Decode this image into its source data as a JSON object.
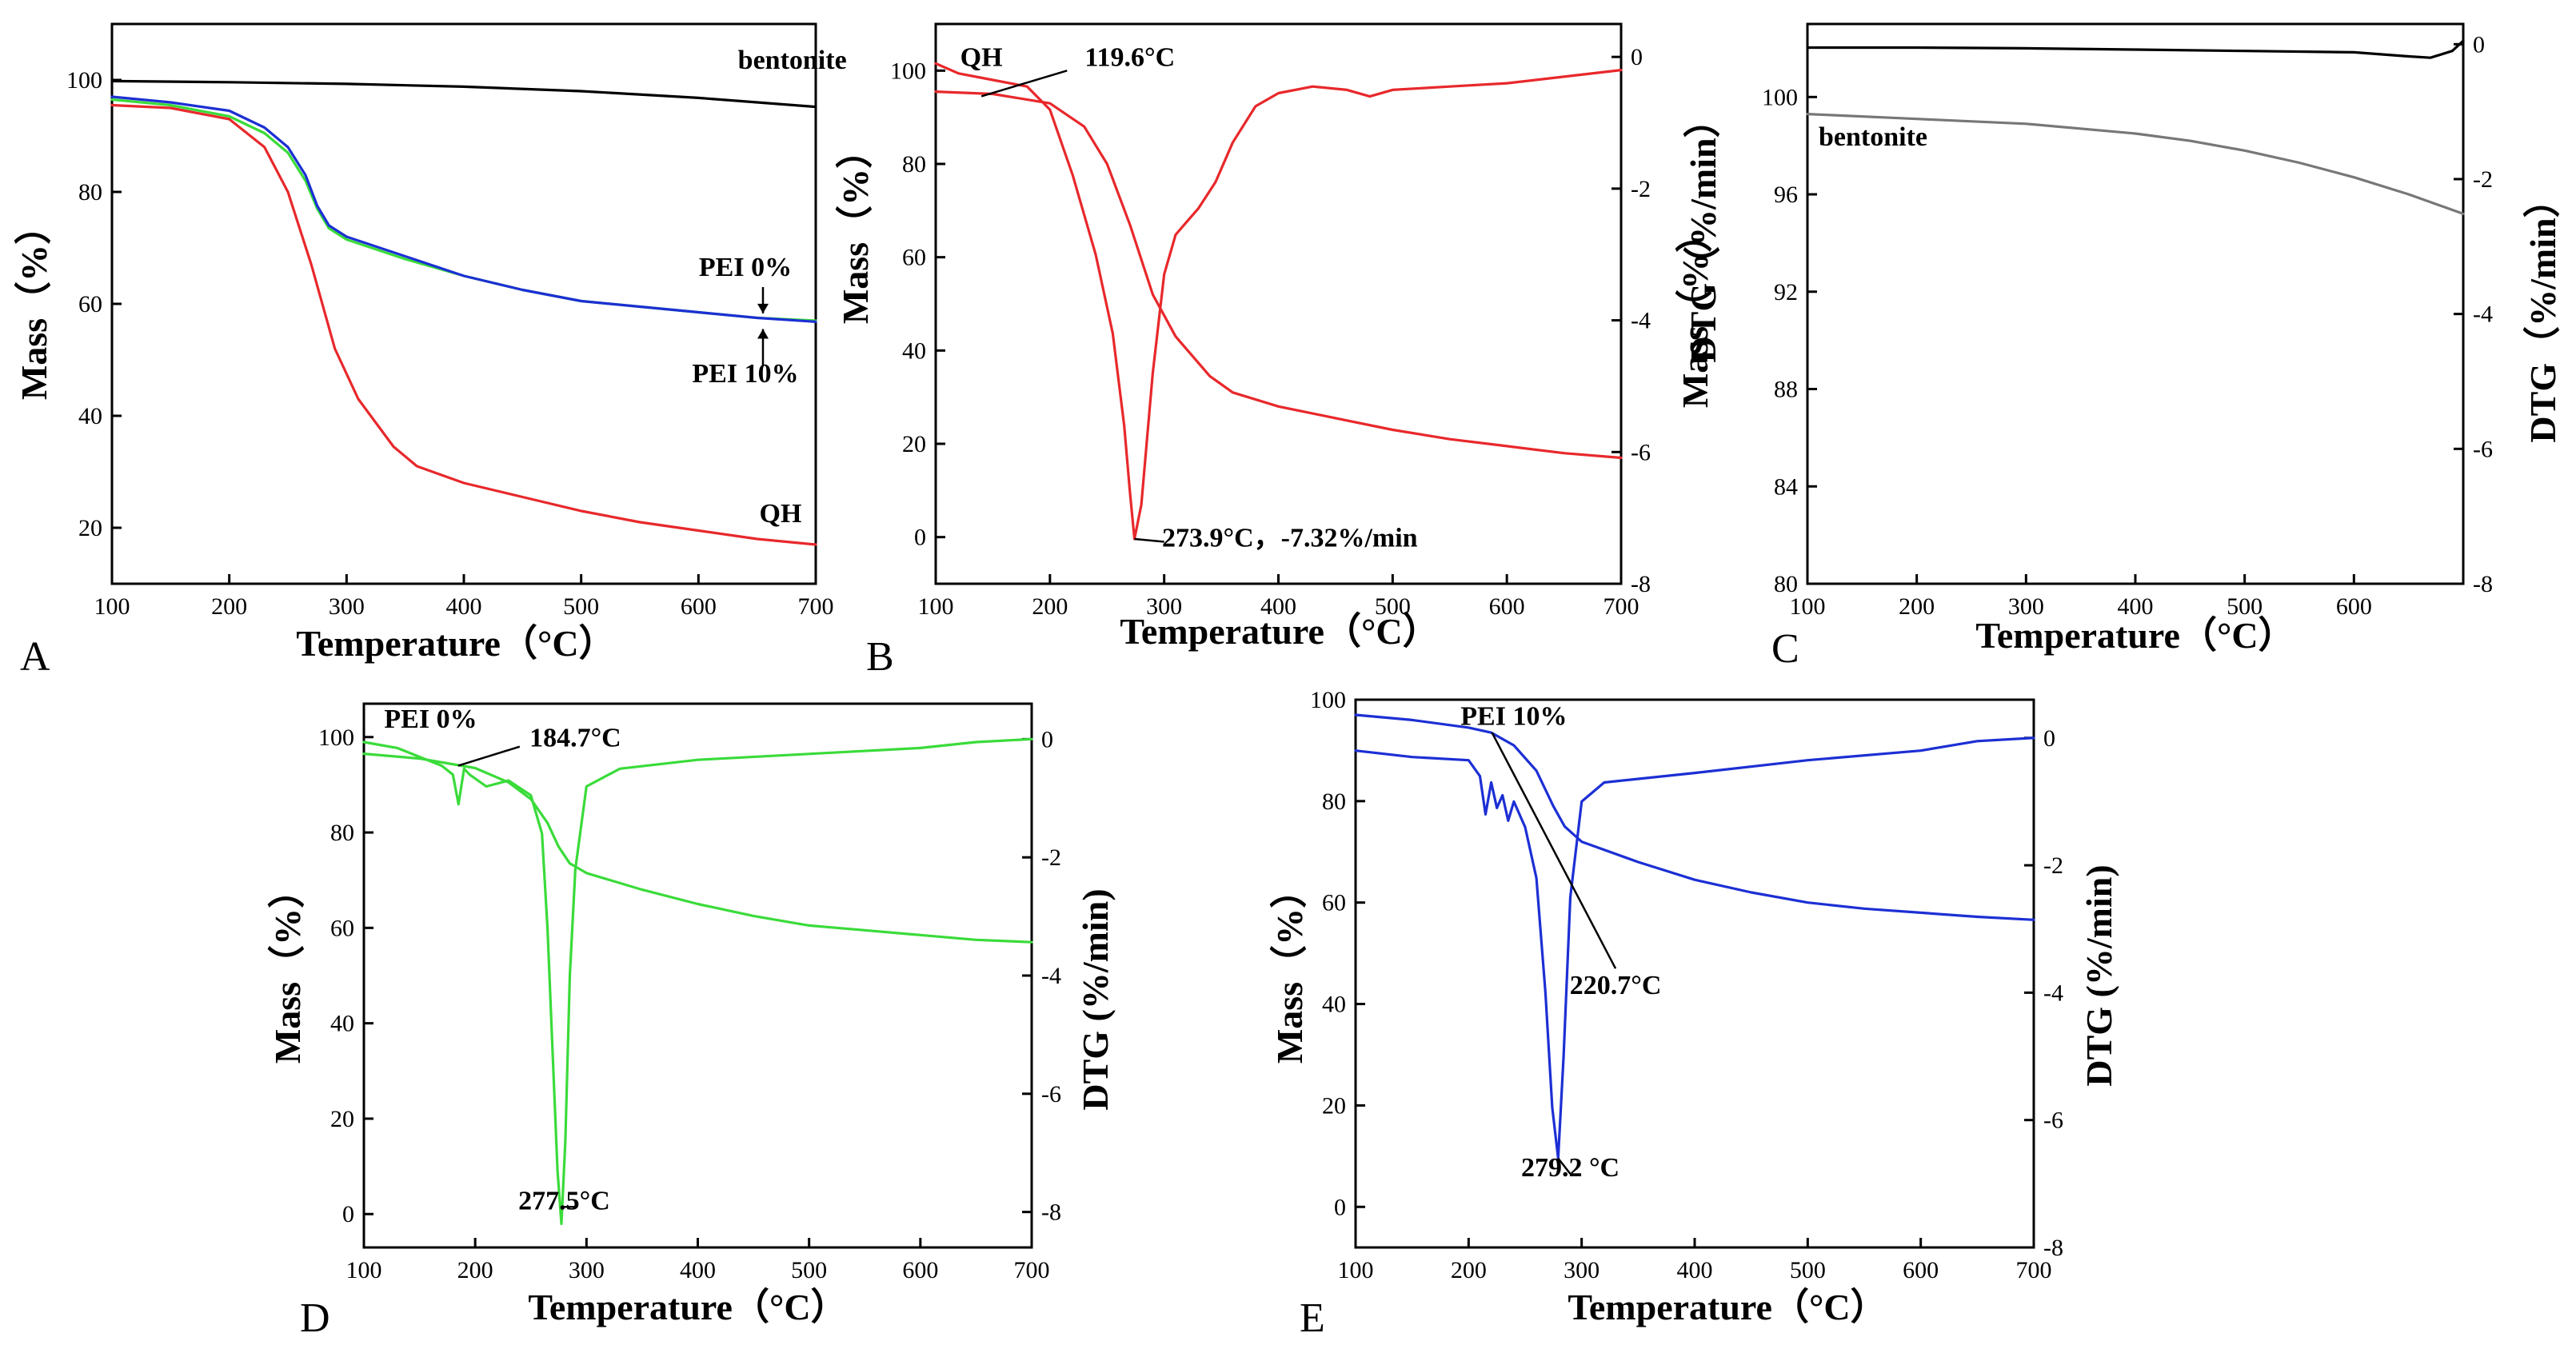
{
  "chart_data": [
    {
      "id": "A",
      "type": "line",
      "panel_label": "A",
      "xlabel": "Temperature（°C）",
      "ylabel": "Mass（%）",
      "xlim": [
        100,
        700
      ],
      "ylim": [
        10,
        110
      ],
      "xticks": [
        100,
        200,
        300,
        400,
        500,
        600,
        700
      ],
      "yticks": [
        20,
        40,
        60,
        80,
        100
      ],
      "series": [
        {
          "name": "bentonite",
          "color": "#000000",
          "axis": "left",
          "x": [
            100,
            200,
            300,
            400,
            500,
            600,
            650,
            700
          ],
          "y": [
            99.8,
            99.6,
            99.3,
            98.8,
            98.0,
            96.8,
            96.0,
            95.2
          ]
        },
        {
          "name": "QH",
          "color": "#e8282b",
          "axis": "left",
          "x": [
            100,
            150,
            200,
            230,
            250,
            270,
            290,
            310,
            340,
            360,
            400,
            450,
            500,
            550,
            600,
            650,
            700
          ],
          "y": [
            95.5,
            95.0,
            93.0,
            88.0,
            80.0,
            67.0,
            52.0,
            43.0,
            34.5,
            31.0,
            28.0,
            25.5,
            23.0,
            21.0,
            19.5,
            18.0,
            17.0
          ]
        },
        {
          "name": "PEI 0%",
          "color": "#3adb3a",
          "axis": "left",
          "x": [
            100,
            150,
            200,
            230,
            250,
            265,
            275,
            285,
            300,
            350,
            400,
            450,
            500,
            550,
            600,
            650,
            700
          ],
          "y": [
            96.5,
            95.5,
            93.5,
            90.5,
            87.0,
            82.0,
            77.0,
            73.5,
            71.5,
            68.0,
            65.0,
            62.5,
            60.5,
            59.5,
            58.5,
            57.5,
            57.0
          ]
        },
        {
          "name": "PEI 10%",
          "color": "#1c2fd4",
          "axis": "left",
          "x": [
            100,
            150,
            200,
            230,
            250,
            265,
            275,
            285,
            300,
            350,
            400,
            450,
            500,
            550,
            600,
            650,
            700
          ],
          "y": [
            97.0,
            96.0,
            94.5,
            91.5,
            88.0,
            83.0,
            77.5,
            74.0,
            72.0,
            68.5,
            65.0,
            62.5,
            60.5,
            59.5,
            58.5,
            57.5,
            56.8
          ]
        }
      ],
      "annotations": [
        {
          "text": "bentonite",
          "x": 680,
          "y": 102
        },
        {
          "text": "PEI 0%",
          "x": 640,
          "y": 65
        },
        {
          "text": "PEI 10%",
          "x": 640,
          "y": 46
        },
        {
          "text": "QH",
          "x": 670,
          "y": 21
        }
      ]
    },
    {
      "id": "B",
      "type": "line",
      "panel_label": "B",
      "xlabel": "Temperature（°C）",
      "ylabel": "Mass（%）",
      "y2label": "DTG（%/min）",
      "xlim": [
        100,
        700
      ],
      "ylim": [
        -10,
        110
      ],
      "y2lim": [
        -8,
        0.5
      ],
      "xticks": [
        100,
        200,
        300,
        400,
        500,
        600,
        700
      ],
      "yticks": [
        0,
        20,
        40,
        60,
        80,
        100
      ],
      "y2ticks": [
        0,
        -2,
        -4,
        -6,
        -8
      ],
      "series": [
        {
          "name": "QH mass",
          "color": "#e8282b",
          "axis": "left",
          "x": [
            100,
            150,
            200,
            230,
            250,
            270,
            290,
            310,
            340,
            360,
            400,
            450,
            500,
            550,
            600,
            650,
            700
          ],
          "y": [
            95.5,
            95.0,
            93.0,
            88.0,
            80.0,
            67.0,
            52.0,
            43.0,
            34.5,
            31.0,
            28.0,
            25.5,
            23.0,
            21.0,
            19.5,
            18.0,
            17.0
          ]
        },
        {
          "name": "QH DTG",
          "color": "#e8282b",
          "axis": "right",
          "x": [
            100,
            120,
            150,
            180,
            200,
            220,
            240,
            255,
            265,
            270,
            274,
            280,
            290,
            300,
            310,
            320,
            330,
            345,
            360,
            380,
            400,
            430,
            460,
            480,
            500,
            550,
            600,
            650,
            700
          ],
          "y": [
            -0.1,
            -0.25,
            -0.35,
            -0.45,
            -0.8,
            -1.8,
            -3.0,
            -4.2,
            -5.6,
            -6.6,
            -7.32,
            -6.8,
            -4.8,
            -3.3,
            -2.7,
            -2.5,
            -2.3,
            -1.9,
            -1.3,
            -0.75,
            -0.55,
            -0.45,
            -0.5,
            -0.6,
            -0.5,
            -0.45,
            -0.4,
            -0.3,
            -0.2
          ]
        }
      ],
      "annotations": [
        {
          "text": "QH",
          "x": 140,
          "y": 101
        },
        {
          "text": "119.6°C",
          "x": 270,
          "y": 101
        },
        {
          "text": "273.9°C，-7.32%/min",
          "x": 410,
          "y": -2
        }
      ]
    },
    {
      "id": "C",
      "type": "line",
      "panel_label": "C",
      "xlabel": "Temperature（°C）",
      "ylabel": "Mass（%）",
      "y2label": "DTG（%/min）",
      "xlim": [
        100,
        700
      ],
      "ylim": [
        80,
        103
      ],
      "y2lim": [
        -8,
        0.3
      ],
      "xticks": [
        100,
        200,
        300,
        400,
        500,
        600
      ],
      "yticks": [
        80,
        84,
        88,
        92,
        96,
        100
      ],
      "y2ticks": [
        0,
        -2,
        -4,
        -6,
        -8
      ],
      "series": [
        {
          "name": "bentonite mass",
          "color": "#777777",
          "axis": "left",
          "x": [
            100,
            200,
            300,
            400,
            450,
            500,
            550,
            600,
            650,
            700
          ],
          "y": [
            99.3,
            99.1,
            98.9,
            98.5,
            98.2,
            97.8,
            97.3,
            96.7,
            96.0,
            95.2
          ]
        },
        {
          "name": "bentonite DTG",
          "color": "#000000",
          "axis": "right",
          "x": [
            100,
            200,
            300,
            400,
            500,
            600,
            650,
            670,
            690,
            700
          ],
          "y": [
            -0.05,
            -0.05,
            -0.06,
            -0.08,
            -0.1,
            -0.12,
            -0.18,
            -0.2,
            -0.1,
            0.05
          ]
        }
      ],
      "annotations": [
        {
          "text": "bentonite",
          "x": 160,
          "y": 98
        }
      ]
    },
    {
      "id": "D",
      "type": "line",
      "panel_label": "D",
      "xlabel": "Temperature（°C）",
      "ylabel": "Mass（%）",
      "y2label": "DTG (%/min)",
      "xlim": [
        100,
        700
      ],
      "ylim": [
        -7,
        107
      ],
      "y2lim": [
        -8.6,
        0.6
      ],
      "xticks": [
        100,
        200,
        300,
        400,
        500,
        600,
        700
      ],
      "yticks": [
        0,
        20,
        40,
        60,
        80,
        100
      ],
      "y2ticks": [
        0,
        -2,
        -4,
        -6,
        -8
      ],
      "series": [
        {
          "name": "PEI 0% mass",
          "color": "#3adb3a",
          "axis": "left",
          "x": [
            100,
            150,
            200,
            230,
            250,
            265,
            275,
            285,
            300,
            350,
            400,
            450,
            500,
            550,
            600,
            650,
            700
          ],
          "y": [
            96.5,
            95.5,
            93.5,
            90.5,
            87.0,
            82.0,
            77.0,
            73.5,
            71.5,
            68.0,
            65.0,
            62.5,
            60.5,
            59.5,
            58.5,
            57.5,
            57.0
          ]
        },
        {
          "name": "PEI 0% DTG",
          "color": "#3adb3a",
          "axis": "right",
          "x": [
            100,
            130,
            150,
            170,
            180,
            185,
            190,
            195,
            210,
            230,
            250,
            260,
            265,
            270,
            274,
            277.5,
            281,
            285,
            290,
            300,
            330,
            400,
            500,
            600,
            650,
            700
          ],
          "y": [
            -0.05,
            -0.15,
            -0.3,
            -0.45,
            -0.6,
            -1.1,
            -0.5,
            -0.6,
            -0.8,
            -0.7,
            -0.95,
            -1.6,
            -3.2,
            -5.5,
            -7.3,
            -8.2,
            -6.8,
            -4.0,
            -2.2,
            -0.8,
            -0.5,
            -0.35,
            -0.25,
            -0.15,
            -0.05,
            0.0
          ]
        }
      ],
      "annotations": [
        {
          "text": "PEI 0%",
          "x": 160,
          "y": 102
        },
        {
          "text": "184.7°C",
          "x": 290,
          "y": 98
        },
        {
          "text": "277.5°C",
          "x": 280,
          "y": 1
        }
      ]
    },
    {
      "id": "E",
      "type": "line",
      "panel_label": "E",
      "xlabel": "Temperature（°C）",
      "ylabel": "Mass（%）",
      "y2label": "DTG (%/min)",
      "xlim": [
        100,
        700
      ],
      "ylim": [
        -8,
        100
      ],
      "y2lim": [
        -8,
        0.6
      ],
      "xticks": [
        100,
        200,
        300,
        400,
        500,
        600,
        700
      ],
      "yticks": [
        0,
        20,
        40,
        60,
        80,
        100
      ],
      "y2ticks": [
        0,
        -2,
        -4,
        -6,
        -8
      ],
      "series": [
        {
          "name": "PEI 10% mass",
          "color": "#1c2fd4",
          "axis": "left",
          "x": [
            100,
            150,
            200,
            220,
            240,
            260,
            275,
            285,
            300,
            350,
            400,
            450,
            500,
            550,
            600,
            650,
            700
          ],
          "y": [
            97.0,
            96.0,
            94.5,
            93.5,
            91.0,
            86.0,
            79.0,
            75.0,
            72.0,
            68.0,
            64.5,
            62.0,
            60.0,
            58.8,
            58.0,
            57.2,
            56.6
          ]
        },
        {
          "name": "PEI 10% DTG",
          "color": "#1c2fd4",
          "axis": "right",
          "x": [
            100,
            150,
            200,
            210,
            215,
            220,
            225,
            230,
            235,
            240,
            250,
            260,
            268,
            274,
            279.2,
            284,
            290,
            300,
            320,
            400,
            500,
            600,
            650,
            700
          ],
          "y": [
            -0.2,
            -0.3,
            -0.35,
            -0.6,
            -1.2,
            -0.7,
            -1.1,
            -0.9,
            -1.3,
            -1.0,
            -1.4,
            -2.2,
            -4.0,
            -5.8,
            -6.6,
            -5.0,
            -2.5,
            -1.0,
            -0.7,
            -0.55,
            -0.35,
            -0.2,
            -0.05,
            0.0
          ]
        }
      ],
      "annotations": [
        {
          "text": "PEI 10%",
          "x": 240,
          "y": 95
        },
        {
          "text": "220.7°C",
          "x": 330,
          "y": 42
        },
        {
          "text": "279.2 °C",
          "x": 290,
          "y": 6
        }
      ]
    }
  ]
}
